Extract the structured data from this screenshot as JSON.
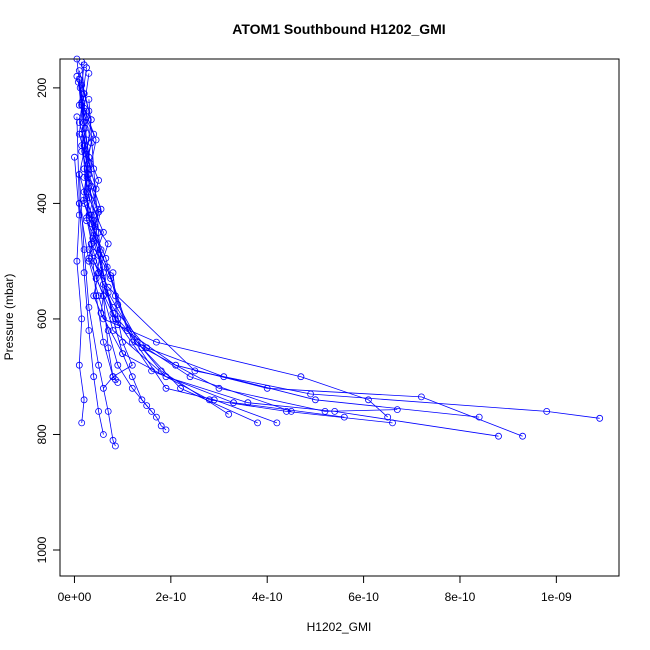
{
  "chart_data": {
    "type": "scatter",
    "title": "ATOM1 Southbound H1202_GMI",
    "xlabel": "H1202_GMI",
    "ylabel": "Pressure (mbar)",
    "xlim": [
      -3e-11,
      1.13e-09
    ],
    "ylim": [
      1045,
      150
    ],
    "y_reversed": true,
    "x_ticks": [
      {
        "value": 0,
        "label": "0e+00"
      },
      {
        "value": 2e-10,
        "label": "2e-10"
      },
      {
        "value": 4e-10,
        "label": "4e-10"
      },
      {
        "value": 6e-10,
        "label": "6e-10"
      },
      {
        "value": 8e-10,
        "label": "8e-10"
      },
      {
        "value": 1e-09,
        "label": "1e-09"
      }
    ],
    "y_ticks": [
      {
        "value": 200,
        "label": "200"
      },
      {
        "value": 400,
        "label": "400"
      },
      {
        "value": 600,
        "label": "600"
      },
      {
        "value": 800,
        "label": "800"
      },
      {
        "value": 1000,
        "label": "1000"
      }
    ],
    "color": "#0000ff",
    "marker": "open-circle",
    "connect_points": true,
    "grid": false,
    "series": [
      {
        "x": [
          1.5e-11,
          2e-11,
          1e-11,
          3e-11,
          2e-11,
          4e-11,
          3e-11,
          5e-11,
          4e-11,
          6e-11,
          1.7e-10,
          4.7e-10,
          6.1e-10,
          6.5e-10
        ],
        "y": [
          155,
          210,
          260,
          320,
          380,
          430,
          480,
          520,
          560,
          600,
          640,
          700,
          740,
          770
        ]
      },
      {
        "x": [
          1e-11,
          3e-11,
          2e-11,
          5e-11,
          3e-11,
          7e-11,
          5e-11,
          8e-11,
          1.5e-10,
          3.1e-10,
          5e-10,
          8.4e-10
        ],
        "y": [
          170,
          240,
          300,
          360,
          420,
          470,
          520,
          580,
          650,
          700,
          740,
          770
        ]
      },
      {
        "x": [
          2e-11,
          1e-11,
          4e-11,
          2e-11,
          3e-11,
          6e-11,
          4e-11,
          7e-11,
          2.5e-10,
          4.9e-10,
          9.8e-10,
          1.09e-09
        ],
        "y": [
          160,
          230,
          280,
          340,
          390,
          450,
          500,
          545,
          690,
          730,
          760,
          772
        ]
      },
      {
        "x": [
          5e-12,
          2.5e-11,
          1.5e-11,
          3.5e-11,
          2.5e-11,
          5.5e-11,
          4.5e-11,
          9e-11,
          2.1e-10,
          4e-10,
          7.2e-10,
          9.3e-10
        ],
        "y": [
          180,
          250,
          310,
          370,
          430,
          480,
          530,
          610,
          680,
          720,
          735,
          803
        ]
      },
      {
        "x": [
          1.2e-11,
          2.2e-11,
          3.2e-11,
          1.8e-11,
          4.2e-11,
          3e-11,
          6e-11,
          8e-11,
          1.9e-10,
          3.6e-10,
          5.4e-10,
          8.8e-10
        ],
        "y": [
          200,
          270,
          330,
          395,
          440,
          495,
          560,
          620,
          700,
          745,
          760,
          803
        ]
      },
      {
        "x": [
          8e-12,
          1.8e-11,
          2.8e-11,
          4.8e-11,
          3.8e-11,
          6.8e-11,
          5.5e-11,
          1e-10,
          2.8e-10,
          4.4e-10,
          6.6e-10
        ],
        "y": [
          190,
          260,
          350,
          410,
          460,
          510,
          590,
          660,
          740,
          760,
          780
        ]
      },
      {
        "x": [
          2.5e-11,
          1.5e-11,
          3.5e-11,
          2e-11,
          5e-11,
          3.5e-11,
          7.5e-11,
          1.2e-10,
          3e-10,
          5.2e-10,
          6.7e-10
        ],
        "y": [
          165,
          225,
          295,
          355,
          415,
          470,
          525,
          640,
          720,
          760,
          757
        ]
      },
      {
        "x": [
          1e-11,
          2e-11,
          1.5e-11,
          3e-11,
          2.5e-11,
          4e-11,
          6e-11,
          8.5e-11,
          1.6e-10,
          3.3e-10,
          5.6e-10
        ],
        "y": [
          185,
          240,
          300,
          365,
          425,
          485,
          540,
          600,
          690,
          745,
          770
        ]
      },
      {
        "x": [
          3e-11,
          2e-11,
          4.5e-11,
          3e-11,
          5.5e-11,
          4e-11,
          7e-11,
          1.3e-10,
          2.4e-10,
          4.5e-10
        ],
        "y": [
          175,
          235,
          290,
          350,
          410,
          465,
          555,
          640,
          700,
          760
        ]
      },
      {
        "x": [
          1.5e-11,
          3.5e-11,
          2.5e-11,
          4.5e-11,
          3.5e-11,
          6.5e-11,
          9e-11,
          1.4e-10,
          2.2e-10,
          3.8e-10
        ],
        "y": [
          195,
          255,
          315,
          375,
          435,
          495,
          575,
          650,
          720,
          780
        ]
      },
      {
        "x": [
          2e-11,
          1e-11,
          3e-11,
          2e-11,
          4.5e-11,
          7.5e-11,
          1.1e-10,
          1.9e-10,
          2.9e-10,
          4.2e-10
        ],
        "y": [
          210,
          280,
          340,
          400,
          460,
          530,
          620,
          720,
          740,
          780
        ]
      },
      {
        "x": [
          5e-12,
          1.5e-11,
          2.5e-11,
          1e-11,
          3.5e-11,
          5e-11,
          8e-11,
          1.8e-10,
          3.2e-10
        ],
        "y": [
          150,
          230,
          290,
          350,
          420,
          490,
          590,
          690,
          765
        ]
      },
      {
        "x": [
          1e-11,
          3e-11,
          5e-11,
          7e-11,
          9e-11,
          1.2e-10,
          1.5e-10,
          1.7e-10,
          1.8e-10,
          1.9e-10
        ],
        "y": [
          400,
          500,
          560,
          620,
          680,
          720,
          750,
          770,
          785,
          792
        ]
      },
      {
        "x": [
          2e-11,
          4e-11,
          6e-11,
          8e-11,
          1e-10,
          1.2e-10,
          1.4e-10,
          1.6e-10
        ],
        "y": [
          300,
          420,
          520,
          600,
          660,
          700,
          740,
          760
        ]
      },
      {
        "x": [
          1e-11,
          2e-11,
          3e-11,
          5e-11,
          7e-11,
          8e-11,
          8.5e-11
        ],
        "y": [
          350,
          480,
          580,
          680,
          760,
          810,
          820
        ]
      },
      {
        "x": [
          5e-12,
          1e-11,
          2e-11,
          3e-11,
          4e-11,
          5e-11,
          6e-11
        ],
        "y": [
          250,
          400,
          520,
          620,
          700,
          760,
          800
        ]
      },
      {
        "x": [
          1.5e-11,
          2.5e-11,
          3.5e-11,
          4.5e-11,
          6e-11,
          8e-11,
          9e-11
        ],
        "y": [
          280,
          380,
          470,
          560,
          640,
          700,
          710
        ]
      },
      {
        "x": [
          3e-11,
          4e-11,
          5e-11,
          6e-11,
          7e-11,
          8e-11,
          8.5e-11
        ],
        "y": [
          220,
          340,
          450,
          560,
          650,
          700,
          705
        ]
      },
      {
        "x": [
          0.0,
          1e-11,
          5e-12,
          1.5e-11,
          1e-11,
          2e-11,
          1.5e-11
        ],
        "y": [
          320,
          420,
          500,
          600,
          680,
          740,
          780
        ]
      },
      {
        "x": [
          8e-11,
          8.5e-11,
          9e-11,
          1e-10,
          1.2e-10,
          8e-11,
          6e-11
        ],
        "y": [
          520,
          560,
          600,
          640,
          680,
          700,
          720
        ]
      }
    ]
  }
}
